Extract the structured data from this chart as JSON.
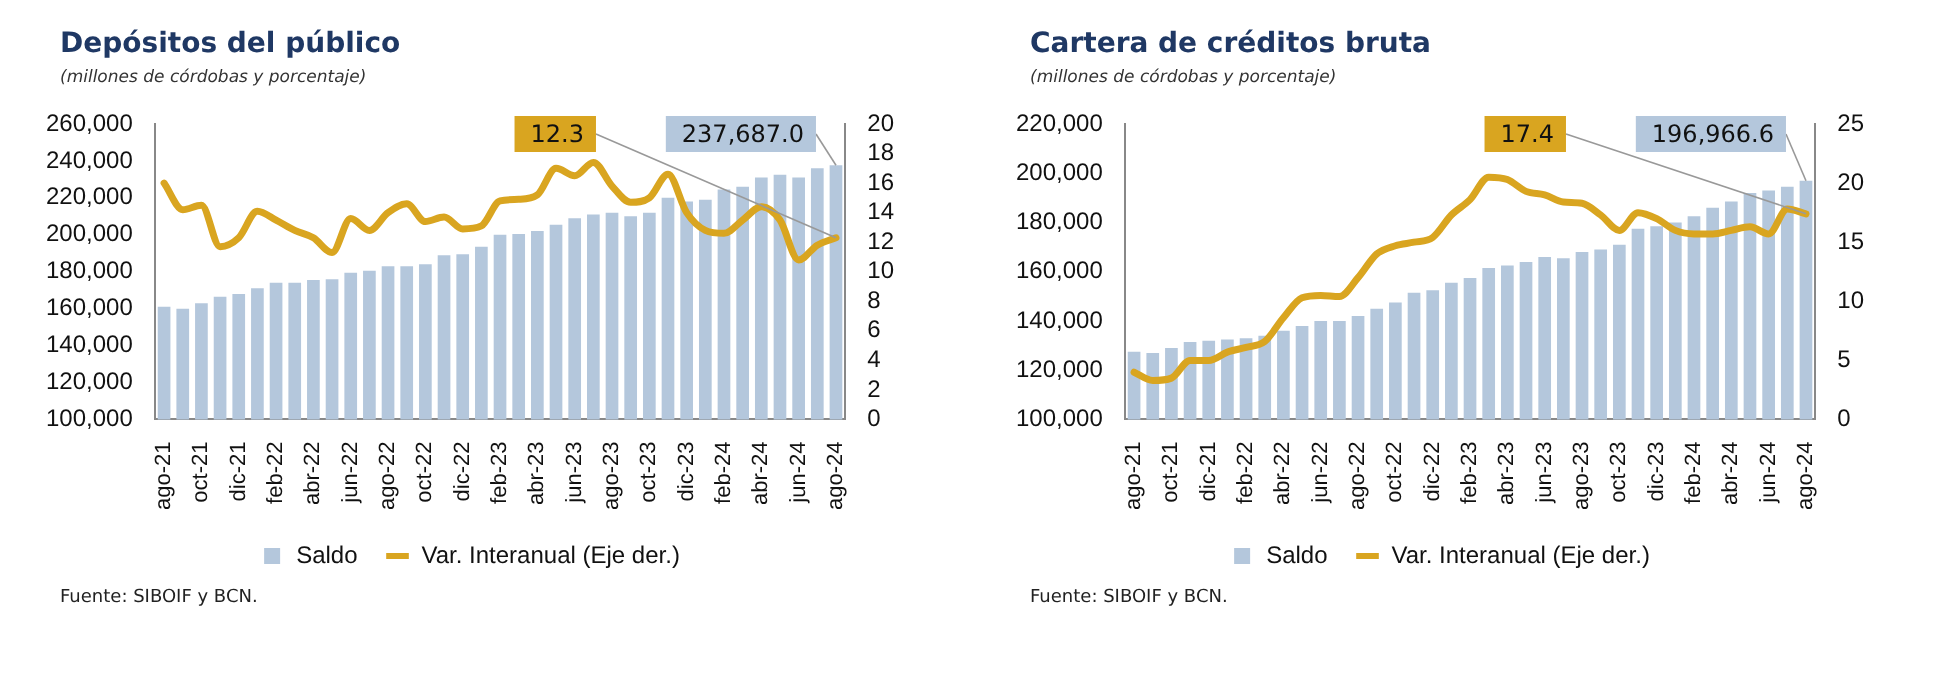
{
  "chart_data": [
    {
      "type": "bar",
      "title": "Depósitos del público",
      "subtitle": "(millones de córdobas y porcentaje)",
      "categories": [
        "ago-21",
        null,
        "oct-21",
        null,
        "dic-21",
        null,
        "feb-22",
        null,
        "abr-22",
        null,
        "jun-22",
        null,
        "ago-22",
        null,
        "oct-22",
        null,
        "dic-22",
        null,
        "feb-23",
        null,
        "abr-23",
        null,
        "jun-23",
        null,
        "ago-23",
        null,
        "oct-23",
        null,
        "dic-23",
        null,
        "feb-24",
        null,
        "abr-24",
        null,
        "jun-24",
        null,
        "ago-24"
      ],
      "series": [
        {
          "name": "Saldo",
          "color": "#b4c7dc",
          "values": [
            161000,
            160000,
            163000,
            166500,
            168000,
            171000,
            174000,
            174000,
            175500,
            176000,
            179500,
            180500,
            183000,
            183000,
            184000,
            189000,
            189500,
            193500,
            200000,
            200500,
            202000,
            205500,
            209000,
            211000,
            212000,
            210000,
            212000,
            220000,
            218000,
            219000,
            224500,
            226000,
            231000,
            232500,
            231000,
            236000,
            237687.0
          ],
          "value_labels": [
            null,
            null,
            null,
            null,
            null,
            null,
            null,
            null,
            null,
            null,
            null,
            null,
            null,
            null,
            null,
            null,
            null,
            null,
            null,
            null,
            null,
            null,
            null,
            null,
            null,
            null,
            null,
            null,
            null,
            null,
            null,
            null,
            null,
            null,
            null,
            null,
            "237,687.0"
          ]
        },
        {
          "name": "Var. Interanual (Eje der.)",
          "type": "line",
          "axis": "y2",
          "color": "#d9a520",
          "values": [
            16.0,
            14.2,
            14.5,
            11.7,
            12.3,
            14.1,
            13.5,
            12.8,
            12.3,
            11.3,
            13.6,
            12.8,
            14.0,
            14.6,
            13.4,
            13.7,
            12.9,
            13.1,
            14.8,
            14.9,
            15.2,
            17.0,
            16.5,
            17.4,
            15.8,
            14.7,
            15.0,
            16.6,
            14.0,
            12.8,
            12.6,
            13.5,
            14.4,
            13.5,
            10.8,
            11.8,
            12.3
          ],
          "value_labels": [
            null,
            null,
            null,
            null,
            null,
            null,
            null,
            null,
            null,
            null,
            null,
            null,
            null,
            null,
            null,
            null,
            null,
            null,
            null,
            null,
            null,
            null,
            null,
            null,
            null,
            null,
            null,
            null,
            null,
            null,
            null,
            null,
            null,
            null,
            null,
            null,
            "12.3"
          ]
        }
      ],
      "ylim": [
        100000,
        260000
      ],
      "yticks": [
        {
          "value": 100000,
          "label": "100,000"
        },
        {
          "value": 120000,
          "label": "120,000"
        },
        {
          "value": 140000,
          "label": "140,000"
        },
        {
          "value": 160000,
          "label": "160,000"
        },
        {
          "value": 180000,
          "label": "180,000"
        },
        {
          "value": 200000,
          "label": "200,000"
        },
        {
          "value": 220000,
          "label": "220,000"
        },
        {
          "value": 240000,
          "label": "240,000"
        },
        {
          "value": 260000,
          "label": "260,000"
        }
      ],
      "y2lim": [
        0,
        20
      ],
      "y2ticks": [
        0,
        2,
        4,
        6,
        8,
        10,
        12,
        14,
        16,
        18,
        20
      ],
      "grid": false,
      "legend": "bottom",
      "marker": "none",
      "line_style": "solid",
      "annotations": [
        "Fuente: SIBOIF y BCN."
      ]
    },
    {
      "type": "bar",
      "title": "Cartera de créditos bruta",
      "subtitle": "(millones de córdobas y porcentaje)",
      "categories": [
        "ago-21",
        null,
        "oct-21",
        null,
        "dic-21",
        null,
        "feb-22",
        null,
        "abr-22",
        null,
        "jun-22",
        null,
        "ago-22",
        null,
        "oct-22",
        null,
        "dic-22",
        null,
        "feb-23",
        null,
        "abr-23",
        null,
        "jun-23",
        null,
        "ago-23",
        null,
        "oct-23",
        null,
        "dic-23",
        null,
        "feb-24",
        null,
        "abr-24",
        null,
        "jun-24",
        null,
        "ago-24"
      ],
      "series": [
        {
          "name": "Saldo",
          "color": "#b4c7dc",
          "values": [
            127500,
            127000,
            129000,
            131500,
            132000,
            132500,
            133000,
            134000,
            136000,
            138000,
            140000,
            140000,
            142000,
            145000,
            147500,
            151500,
            152500,
            155500,
            157500,
            161500,
            162500,
            164000,
            166000,
            165500,
            168000,
            169000,
            171000,
            177500,
            178500,
            180000,
            182500,
            186000,
            188500,
            192000,
            193000,
            194500,
            196966.6
          ],
          "value_labels": [
            null,
            null,
            null,
            null,
            null,
            null,
            null,
            null,
            null,
            null,
            null,
            null,
            null,
            null,
            null,
            null,
            null,
            null,
            null,
            null,
            null,
            null,
            null,
            null,
            null,
            null,
            null,
            null,
            null,
            null,
            null,
            null,
            null,
            null,
            null,
            null,
            "196,966.6"
          ]
        },
        {
          "name": "Var. Interanual (Eje der.)",
          "type": "line",
          "axis": "y2",
          "color": "#d9a520",
          "values": [
            4.0,
            3.3,
            3.5,
            5.0,
            5.0,
            5.7,
            6.1,
            6.6,
            8.6,
            10.3,
            10.5,
            10.4,
            12.0,
            14.0,
            14.7,
            15.0,
            15.4,
            17.3,
            18.6,
            20.5,
            20.3,
            19.3,
            19.0,
            18.4,
            18.3,
            17.3,
            16.0,
            17.5,
            17.0,
            16.0,
            15.7,
            15.7,
            16.0,
            16.3,
            15.7,
            17.8,
            17.4
          ],
          "value_labels": [
            null,
            null,
            null,
            null,
            null,
            null,
            null,
            null,
            null,
            null,
            null,
            null,
            null,
            null,
            null,
            null,
            null,
            null,
            null,
            null,
            null,
            null,
            null,
            null,
            null,
            null,
            null,
            null,
            null,
            null,
            null,
            null,
            null,
            null,
            null,
            null,
            "17.4"
          ]
        }
      ],
      "ylim": [
        100000,
        220000
      ],
      "yticks": [
        {
          "value": 100000,
          "label": "100,000"
        },
        {
          "value": 120000,
          "label": "120,000"
        },
        {
          "value": 140000,
          "label": "140,000"
        },
        {
          "value": 160000,
          "label": "160,000"
        },
        {
          "value": 180000,
          "label": "180,000"
        },
        {
          "value": 200000,
          "label": "200,000"
        },
        {
          "value": 220000,
          "label": "220,000"
        }
      ],
      "y2lim": [
        0,
        25
      ],
      "y2ticks": [
        0,
        5,
        10,
        15,
        20,
        25
      ],
      "grid": false,
      "legend": "bottom",
      "marker": "none",
      "line_style": "solid",
      "annotations": [
        "Fuente: SIBOIF y BCN."
      ]
    }
  ]
}
